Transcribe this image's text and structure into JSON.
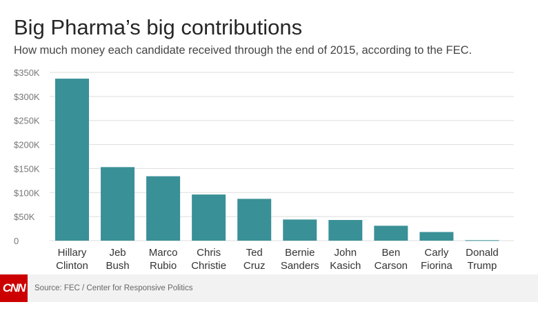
{
  "header": {
    "title": "Big Pharma’s big contributions",
    "subtitle": "How much money each candidate received through the end of 2015, according to the FEC."
  },
  "footer": {
    "logo": "CNN",
    "source": "Source: FEC / Center for Responsive Politics"
  },
  "colors": {
    "bar": "#3a9097",
    "grid": "#dddddd",
    "tick": "#777777",
    "category": "#333333"
  },
  "chart_data": {
    "type": "bar",
    "title": "Big Pharma’s big contributions",
    "subtitle": "How much money each candidate received through the end of 2015, according to the FEC.",
    "categories": [
      [
        "Hillary",
        "Clinton"
      ],
      [
        "Jeb",
        "Bush"
      ],
      [
        "Marco",
        "Rubio"
      ],
      [
        "Chris",
        "Christie"
      ],
      [
        "Ted",
        "Cruz"
      ],
      [
        "Bernie",
        "Sanders"
      ],
      [
        "John",
        "Kasich"
      ],
      [
        "Ben",
        "Carson"
      ],
      [
        "Carly",
        "Fiorina"
      ],
      [
        "Donald",
        "Trump"
      ]
    ],
    "values": [
      337000,
      153000,
      134000,
      96000,
      87000,
      44000,
      43000,
      31000,
      18000,
      1000
    ],
    "ylim": [
      0,
      350000
    ],
    "yticks": [
      {
        "value": 0,
        "label": "0"
      },
      {
        "value": 50000,
        "label": "$50K"
      },
      {
        "value": 100000,
        "label": "$100K"
      },
      {
        "value": 150000,
        "label": "$150K"
      },
      {
        "value": 200000,
        "label": "$200K"
      },
      {
        "value": 250000,
        "label": "$250K"
      },
      {
        "value": 300000,
        "label": "$300K"
      },
      {
        "value": 350000,
        "label": "$350K"
      }
    ],
    "grid": true,
    "legend": "none"
  }
}
